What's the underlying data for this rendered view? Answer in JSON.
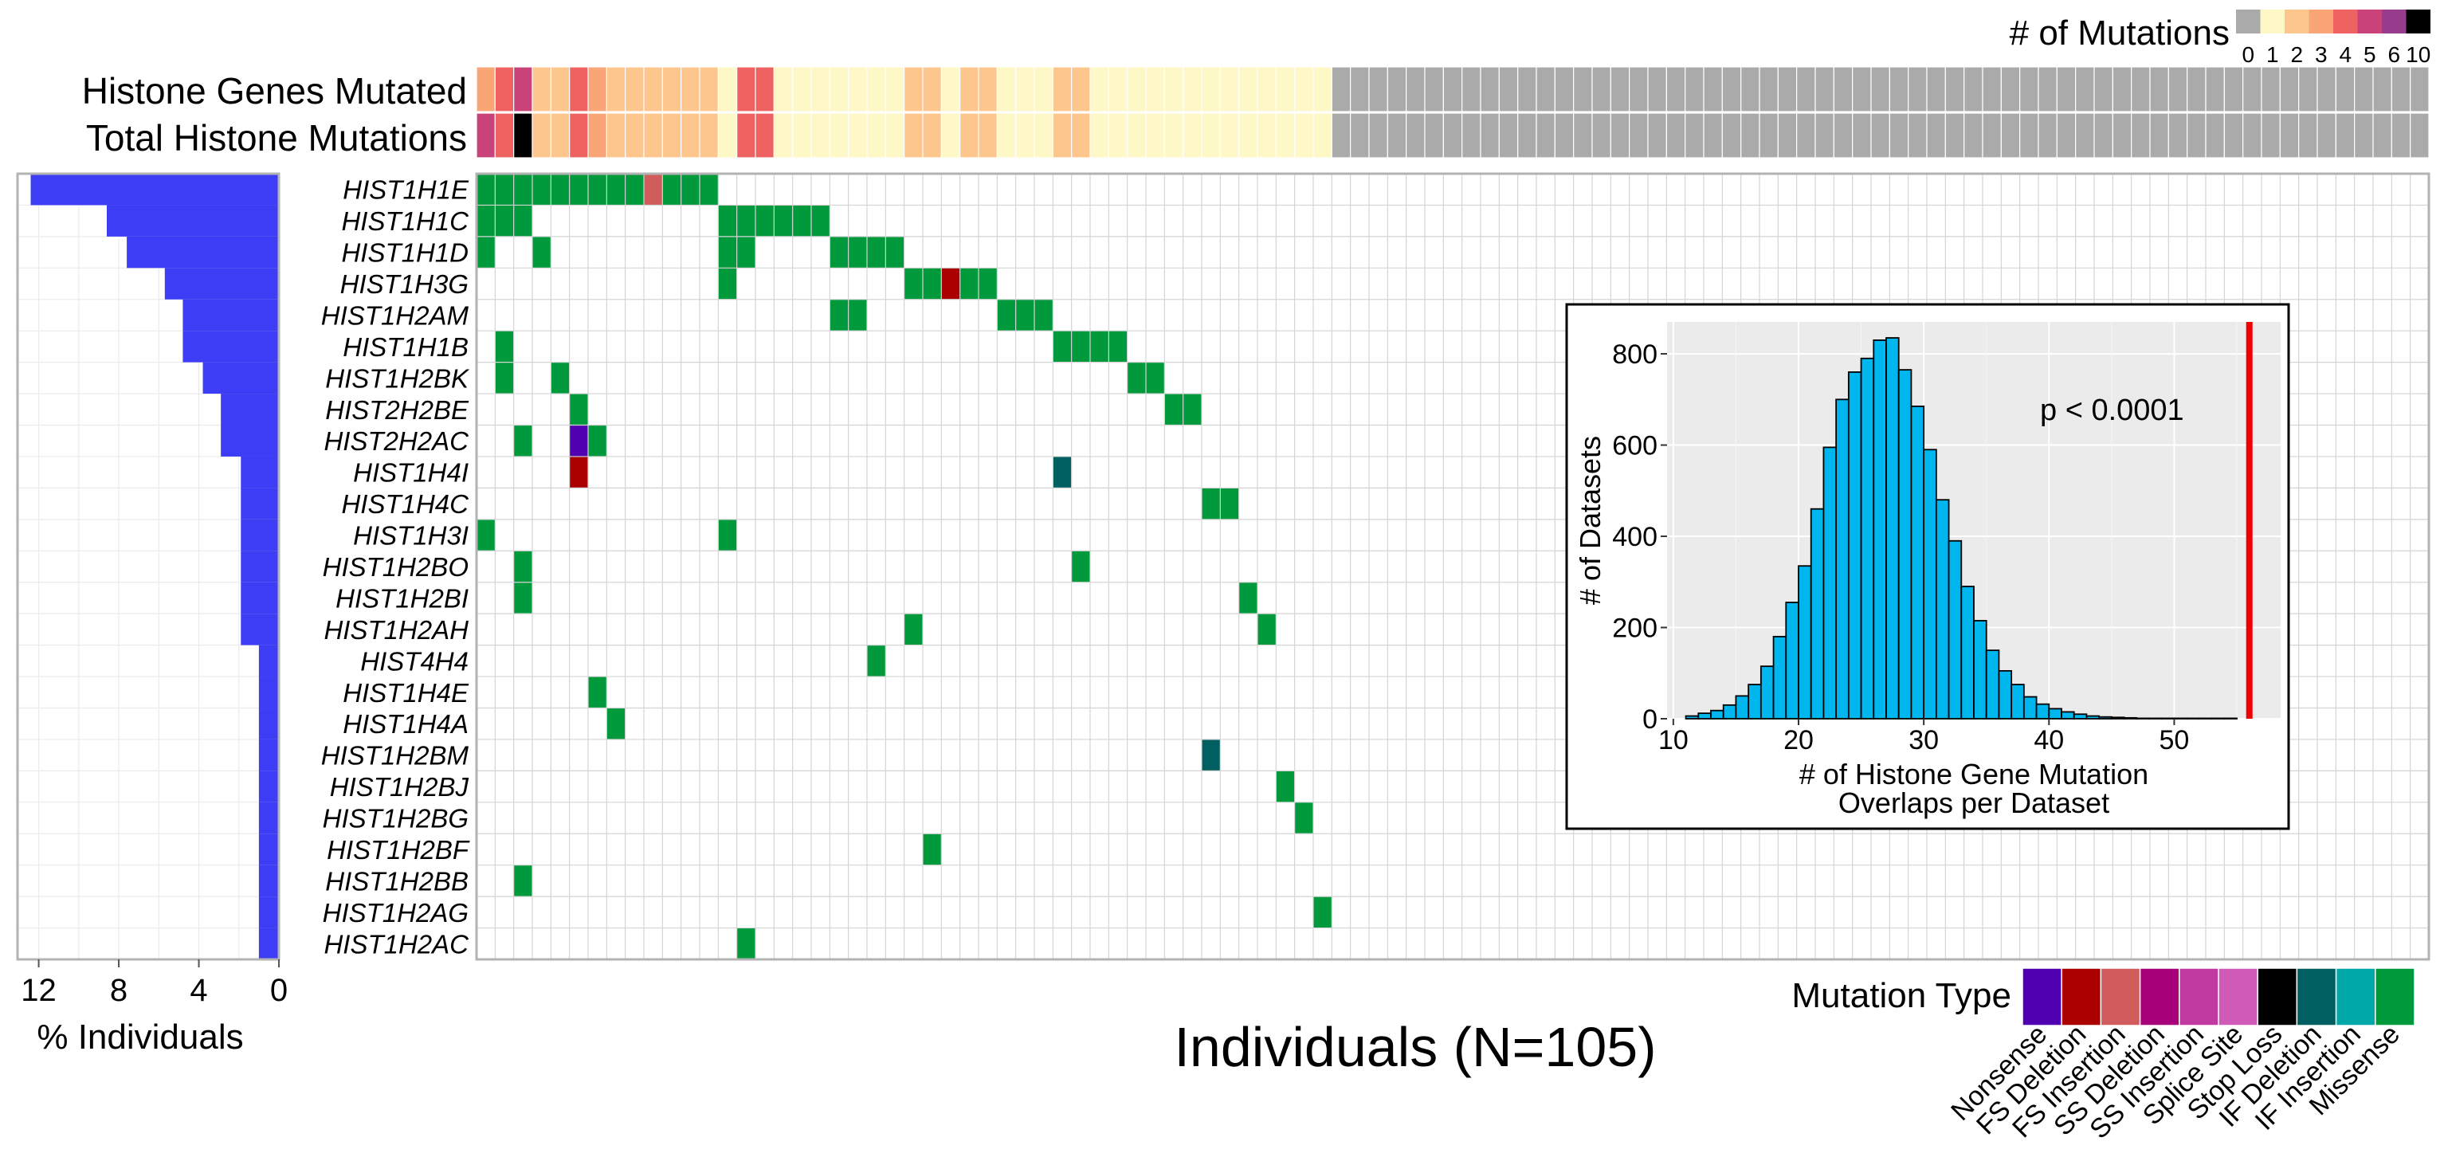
{
  "header": {
    "row_labels": [
      "Histone Genes Mutated",
      "Total Histone Mutations"
    ],
    "count_legend_title": "# of Mutations",
    "count_legend_labels": [
      "0",
      "1",
      "2",
      "3",
      "4",
      "5",
      "6",
      "10"
    ]
  },
  "axis_x_title": "Individuals (N=105)",
  "bar_axis_title": "% Individuals",
  "bar_axis_ticks": [
    "12",
    "8",
    "4",
    "0"
  ],
  "mutation_legend_title": "Mutation Type",
  "chart_data": [
    {
      "type": "heatmap",
      "name": "oncoprint",
      "n_individuals": 105,
      "genes": [
        "HIST1H1E",
        "HIST1H1C",
        "HIST1H1D",
        "HIST1H3G",
        "HIST1H2AM",
        "HIST1H1B",
        "HIST1H2BK",
        "HIST2H2BE",
        "HIST2H2AC",
        "HIST1H4I",
        "HIST1H4C",
        "HIST1H3I",
        "HIST1H2BO",
        "HIST1H2BI",
        "HIST1H2AH",
        "HIST4H4",
        "HIST1H4E",
        "HIST1H4A",
        "HIST1H2BM",
        "HIST1H2BJ",
        "HIST1H2BG",
        "HIST1H2BF",
        "HIST1H2BB",
        "HIST1H2AG",
        "HIST1H2AC"
      ],
      "mutation_types": [
        "Nonsense",
        "FS Deletion",
        "FS Insertion",
        "SS Deletion",
        "SS Insertion",
        "Splice Site",
        "Stop Loss",
        "IF Deletion",
        "IF Insertion",
        "Missense"
      ],
      "mutation_colors": [
        "#5000b0",
        "#aa0000",
        "#d05c5c",
        "#a8007a",
        "#c13aa2",
        "#d05ab8",
        "#000000",
        "#005f60",
        "#00a8a8",
        "#009a3c"
      ],
      "cells": [
        [
          0,
          0,
          "Missense"
        ],
        [
          0,
          1,
          "Missense"
        ],
        [
          0,
          2,
          "Missense"
        ],
        [
          0,
          3,
          "Missense"
        ],
        [
          0,
          4,
          "Missense"
        ],
        [
          0,
          5,
          "Missense"
        ],
        [
          0,
          6,
          "Missense"
        ],
        [
          0,
          7,
          "Missense"
        ],
        [
          0,
          8,
          "Missense"
        ],
        [
          0,
          9,
          "FS Insertion"
        ],
        [
          0,
          10,
          "Missense"
        ],
        [
          0,
          11,
          "Missense"
        ],
        [
          0,
          12,
          "Missense"
        ],
        [
          1,
          0,
          "Missense"
        ],
        [
          1,
          1,
          "Missense"
        ],
        [
          1,
          2,
          "Missense"
        ],
        [
          1,
          13,
          "Missense"
        ],
        [
          1,
          14,
          "Missense"
        ],
        [
          1,
          15,
          "Missense"
        ],
        [
          1,
          16,
          "Missense"
        ],
        [
          1,
          17,
          "Missense"
        ],
        [
          1,
          18,
          "Missense"
        ],
        [
          2,
          0,
          "Missense"
        ],
        [
          2,
          3,
          "Missense"
        ],
        [
          2,
          13,
          "Missense"
        ],
        [
          2,
          14,
          "Missense"
        ],
        [
          2,
          19,
          "Missense"
        ],
        [
          2,
          20,
          "Missense"
        ],
        [
          2,
          21,
          "Missense"
        ],
        [
          2,
          22,
          "Missense"
        ],
        [
          3,
          13,
          "Missense"
        ],
        [
          3,
          23,
          "Missense"
        ],
        [
          3,
          24,
          "Missense"
        ],
        [
          3,
          25,
          "FS Deletion"
        ],
        [
          3,
          26,
          "Missense"
        ],
        [
          3,
          27,
          "Missense"
        ],
        [
          4,
          19,
          "Missense"
        ],
        [
          4,
          20,
          "Missense"
        ],
        [
          4,
          28,
          "Missense"
        ],
        [
          4,
          29,
          "Missense"
        ],
        [
          4,
          30,
          "Missense"
        ],
        [
          5,
          1,
          "Missense"
        ],
        [
          5,
          31,
          "Missense"
        ],
        [
          5,
          32,
          "Missense"
        ],
        [
          5,
          33,
          "Missense"
        ],
        [
          5,
          34,
          "Missense"
        ],
        [
          6,
          1,
          "Missense"
        ],
        [
          6,
          4,
          "Missense"
        ],
        [
          6,
          35,
          "Missense"
        ],
        [
          6,
          36,
          "Missense"
        ],
        [
          7,
          5,
          "Missense"
        ],
        [
          7,
          37,
          "Missense"
        ],
        [
          7,
          38,
          "Missense"
        ],
        [
          8,
          2,
          "Missense"
        ],
        [
          8,
          5,
          "Nonsense"
        ],
        [
          8,
          6,
          "Missense"
        ],
        [
          9,
          5,
          "FS Deletion"
        ],
        [
          9,
          31,
          "IF Deletion"
        ],
        [
          10,
          39,
          "Missense"
        ],
        [
          10,
          40,
          "Missense"
        ],
        [
          11,
          0,
          "Missense"
        ],
        [
          11,
          13,
          "Missense"
        ],
        [
          12,
          2,
          "Missense"
        ],
        [
          12,
          32,
          "Missense"
        ],
        [
          13,
          2,
          "Missense"
        ],
        [
          13,
          41,
          "Missense"
        ],
        [
          14,
          23,
          "Missense"
        ],
        [
          14,
          42,
          "Missense"
        ],
        [
          15,
          21,
          "Missense"
        ],
        [
          16,
          6,
          "Missense"
        ],
        [
          17,
          7,
          "Missense"
        ],
        [
          18,
          39,
          "IF Deletion"
        ],
        [
          19,
          43,
          "Missense"
        ],
        [
          20,
          44,
          "Missense"
        ],
        [
          21,
          24,
          "Missense"
        ],
        [
          22,
          2,
          "Missense"
        ],
        [
          23,
          45,
          "Missense"
        ],
        [
          24,
          14,
          "Missense"
        ]
      ],
      "histone_genes_mutated": [
        3,
        4,
        5,
        2,
        2,
        4,
        3,
        2,
        2,
        2,
        2,
        2,
        2,
        1,
        4,
        4,
        1,
        1,
        1,
        1,
        1,
        1,
        1,
        2,
        2,
        1,
        2,
        2,
        1,
        1,
        1,
        2,
        2,
        1,
        1,
        1,
        1,
        1,
        1,
        1,
        1,
        1,
        1,
        1,
        1,
        1
      ],
      "total_histone_mutations": [
        5,
        4,
        10,
        2,
        2,
        4,
        3,
        2,
        2,
        2,
        2,
        2,
        2,
        1,
        4,
        4,
        1,
        1,
        1,
        1,
        1,
        1,
        1,
        2,
        2,
        1,
        2,
        2,
        1,
        1,
        1,
        2,
        2,
        1,
        1,
        1,
        1,
        1,
        1,
        1,
        1,
        1,
        1,
        1,
        1,
        1
      ],
      "count_color_scale": [
        {
          "value": 0,
          "color": "#aaaaaa"
        },
        {
          "value": 1,
          "color": "#fdf8c6"
        },
        {
          "value": 2,
          "color": "#fcc68c"
        },
        {
          "value": 3,
          "color": "#f9a576"
        },
        {
          "value": 4,
          "color": "#ef6262"
        },
        {
          "value": 5,
          "color": "#c9427a"
        },
        {
          "value": 6,
          "color": "#983d8e"
        },
        {
          "value": 10,
          "color": "#000000"
        }
      ]
    },
    {
      "type": "bar",
      "name": "percent-individuals",
      "orientation": "horizontal",
      "categories": [
        "HIST1H1E",
        "HIST1H1C",
        "HIST1H1D",
        "HIST1H3G",
        "HIST1H2AM",
        "HIST1H1B",
        "HIST1H2BK",
        "HIST2H2BE",
        "HIST2H2AC",
        "HIST1H4I",
        "HIST1H4C",
        "HIST1H3I",
        "HIST1H2BO",
        "HIST1H2BI",
        "HIST1H2AH",
        "HIST4H4",
        "HIST1H4E",
        "HIST1H4A",
        "HIST1H2BM",
        "HIST1H2BJ",
        "HIST1H2BG",
        "HIST1H2BF",
        "HIST1H2BB",
        "HIST1H2AG",
        "HIST1H2AC"
      ],
      "values": [
        12.4,
        8.6,
        7.6,
        5.7,
        4.8,
        4.8,
        3.8,
        2.9,
        2.9,
        1.9,
        1.9,
        1.9,
        1.9,
        1.9,
        1.9,
        1.0,
        1.0,
        1.0,
        1.0,
        1.0,
        1.0,
        1.0,
        1.0,
        1.0,
        1.0
      ],
      "xlim": [
        0,
        12.5
      ],
      "reversed": true,
      "color": "#3d3df5"
    },
    {
      "type": "bar",
      "name": "permutation-histogram",
      "xlabel": "# of Histone Gene Mutation Overlaps per Dataset",
      "ylabel": "# of Datasets",
      "xticks": [
        10,
        20,
        30,
        40,
        50
      ],
      "yticks": [
        0,
        200,
        400,
        600,
        800
      ],
      "xlim": [
        9.5,
        58.5
      ],
      "ylim": [
        0,
        870
      ],
      "bin_width": 1,
      "bin_start": 11,
      "counts": [
        6,
        12,
        18,
        30,
        50,
        75,
        115,
        180,
        255,
        335,
        460,
        595,
        700,
        760,
        790,
        830,
        835,
        765,
        685,
        590,
        480,
        390,
        290,
        215,
        150,
        105,
        75,
        48,
        32,
        22,
        15,
        10,
        6,
        4,
        3,
        2,
        1,
        1,
        1,
        1,
        1,
        1,
        1,
        1,
        0,
        0,
        0
      ],
      "observed_value": 56,
      "observed_color": "#ee0000",
      "bar_color": "#00b6ee",
      "annotation": "p < 0.0001"
    }
  ]
}
